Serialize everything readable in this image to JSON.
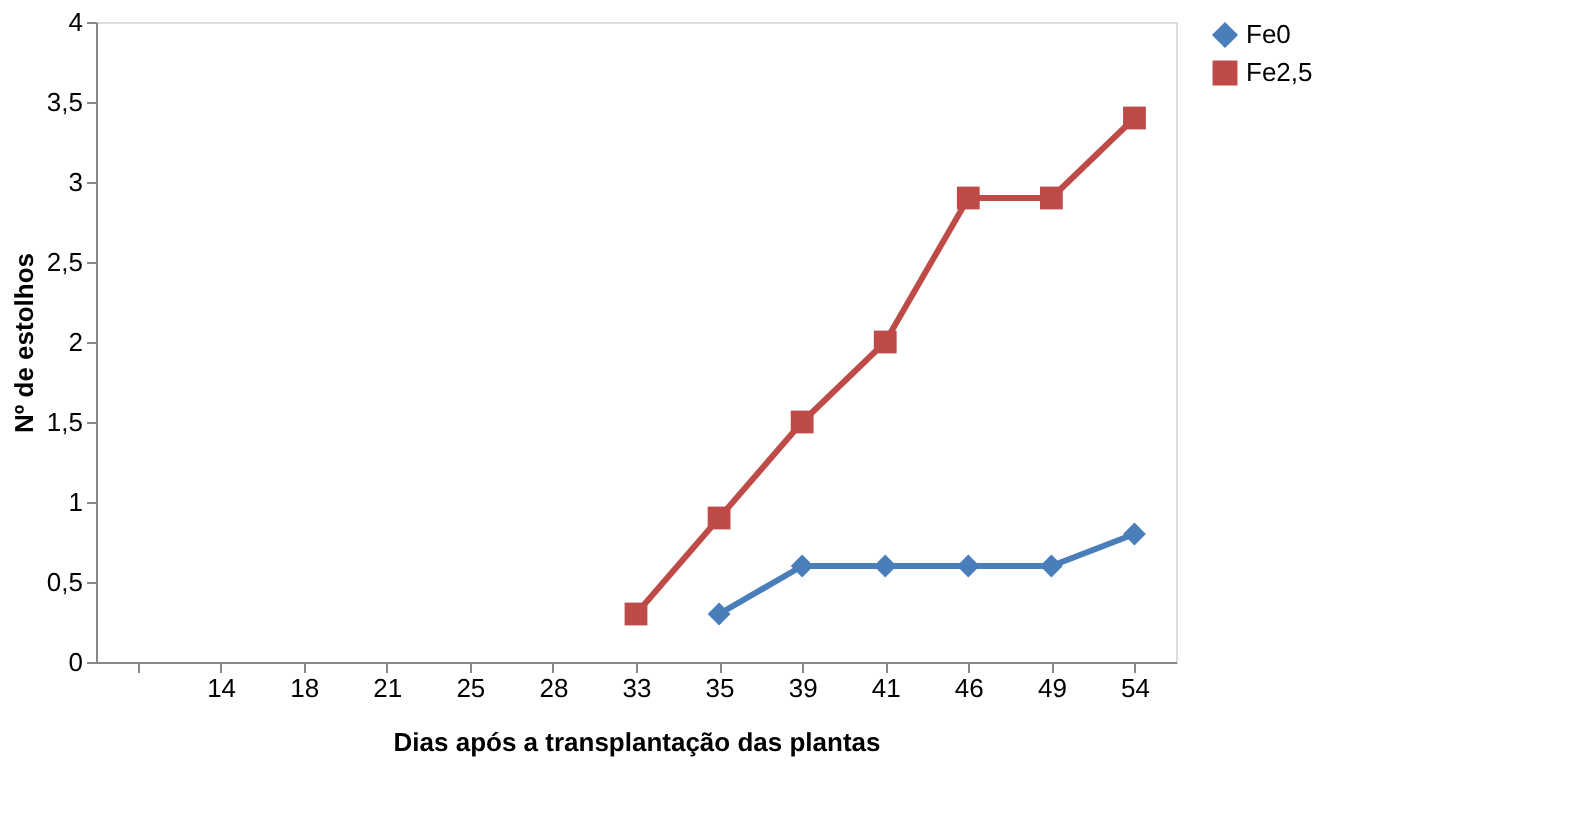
{
  "chart_data": {
    "type": "line",
    "xlabel": "Dias após a transplantação das plantas",
    "ylabel": "Nº de estolhos",
    "categories": [
      null,
      "14",
      "18",
      "21",
      "25",
      "28",
      "33",
      "35",
      "39",
      "41",
      "46",
      "49",
      "54"
    ],
    "series": [
      {
        "name": "Fe0",
        "color": "#4a7ebb",
        "marker": "diamond",
        "values": [
          null,
          null,
          null,
          null,
          null,
          null,
          null,
          0.3,
          0.6,
          0.6,
          0.6,
          0.6,
          0.8
        ]
      },
      {
        "name": "Fe2,5",
        "color": "#be4b48",
        "marker": "square",
        "values": [
          null,
          null,
          null,
          null,
          null,
          null,
          0.3,
          0.9,
          1.5,
          2.0,
          2.9,
          2.9,
          3.4
        ]
      }
    ],
    "ylim": [
      0,
      4
    ],
    "yticks": [
      0,
      {
        "value": 0.5,
        "label": "0,5"
      },
      1,
      {
        "value": 1.5,
        "label": "1,5"
      },
      2,
      {
        "value": 2.5,
        "label": "2,5"
      },
      3,
      {
        "value": 3.5,
        "label": "3,5"
      },
      4
    ],
    "grid": false,
    "legend": "right",
    "line_style": "solid"
  }
}
